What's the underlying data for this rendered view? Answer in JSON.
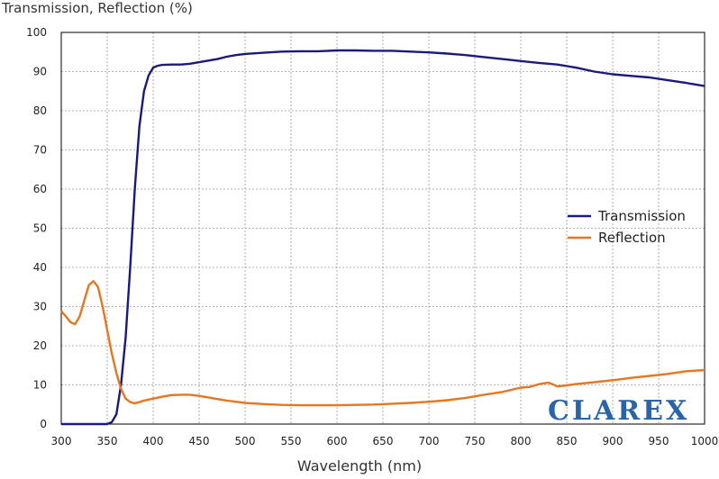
{
  "chart_data": {
    "type": "line",
    "ylabel": "Transmission, Reflection (%)",
    "xlabel": "Wavelength (nm)",
    "xlim": [
      300,
      1000
    ],
    "ylim": [
      0,
      100
    ],
    "xticks": [
      300,
      350,
      400,
      450,
      500,
      550,
      600,
      650,
      700,
      750,
      800,
      850,
      900,
      950,
      1000
    ],
    "yticks": [
      0,
      10,
      20,
      30,
      40,
      50,
      60,
      70,
      80,
      90,
      100
    ],
    "grid": true,
    "legend_position": "right",
    "series": [
      {
        "name": "Transmission",
        "color": "#1a1a7e",
        "x": [
          300,
          340,
          350,
          355,
          360,
          365,
          370,
          375,
          380,
          385,
          390,
          395,
          400,
          405,
          410,
          420,
          430,
          440,
          450,
          460,
          470,
          480,
          490,
          500,
          520,
          540,
          560,
          580,
          600,
          620,
          640,
          660,
          680,
          700,
          720,
          740,
          760,
          780,
          800,
          820,
          840,
          860,
          880,
          900,
          920,
          940,
          960,
          980,
          1000
        ],
        "values": [
          0,
          0,
          0,
          0.5,
          2.5,
          10,
          22,
          40,
          60,
          76,
          85,
          89,
          91,
          91.5,
          91.7,
          91.8,
          91.8,
          92,
          92.4,
          92.8,
          93.2,
          93.8,
          94.2,
          94.5,
          94.8,
          95.1,
          95.2,
          95.2,
          95.4,
          95.4,
          95.3,
          95.3,
          95.1,
          94.9,
          94.6,
          94.2,
          93.7,
          93.2,
          92.7,
          92.2,
          91.8,
          91,
          90,
          89.3,
          88.9,
          88.5,
          87.8,
          87.1,
          86.3
        ]
      },
      {
        "name": "Reflection",
        "color": "#e6761f",
        "x": [
          300,
          305,
          310,
          315,
          320,
          325,
          330,
          335,
          340,
          345,
          350,
          355,
          360,
          365,
          370,
          375,
          380,
          385,
          390,
          400,
          410,
          420,
          430,
          440,
          450,
          460,
          480,
          500,
          520,
          540,
          560,
          580,
          600,
          620,
          640,
          660,
          680,
          700,
          720,
          740,
          760,
          780,
          800,
          810,
          820,
          830,
          840,
          850,
          860,
          880,
          900,
          920,
          940,
          960,
          980,
          1000
        ],
        "values": [
          28.8,
          27.5,
          26,
          25.5,
          27.5,
          31.5,
          35.5,
          36.5,
          35,
          30,
          24,
          18,
          13,
          9,
          6.5,
          5.6,
          5.3,
          5.6,
          6,
          6.5,
          7,
          7.4,
          7.5,
          7.5,
          7.2,
          6.8,
          6,
          5.4,
          5.1,
          4.9,
          4.8,
          4.8,
          4.8,
          4.9,
          5,
          5.2,
          5.4,
          5.7,
          6.1,
          6.7,
          7.5,
          8.2,
          9.3,
          9.5,
          10.2,
          10.6,
          9.6,
          9.9,
          10.2,
          10.7,
          11.2,
          11.8,
          12.3,
          12.8,
          13.5,
          13.8
        ]
      }
    ]
  },
  "logo_text": "CLAREX"
}
